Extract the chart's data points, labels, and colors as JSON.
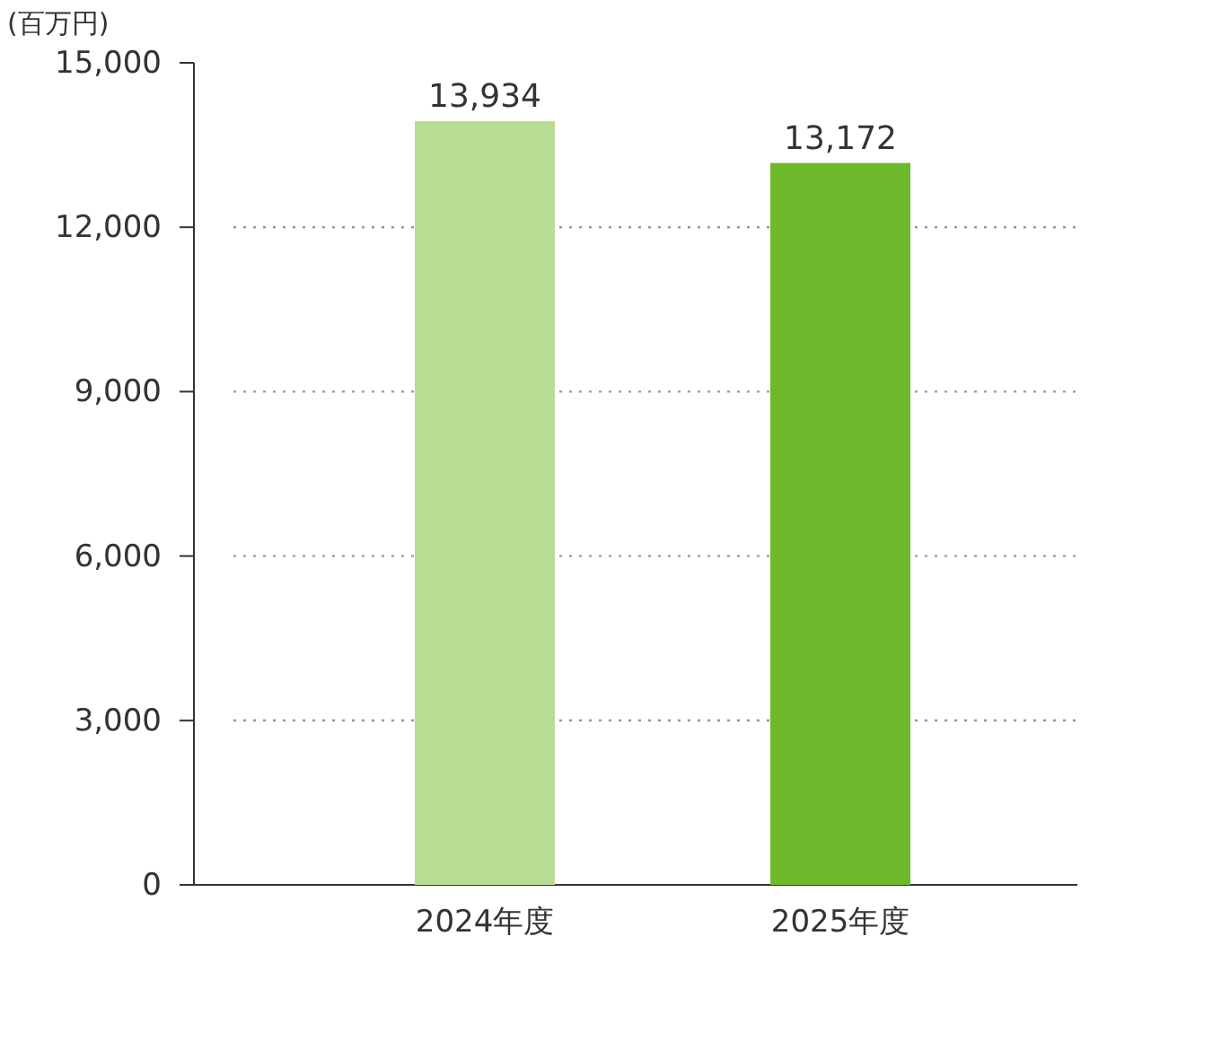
{
  "chart_data": {
    "type": "bar",
    "ylabel": "(百万円)",
    "categories": [
      "2024年度",
      "2025年度"
    ],
    "values": [
      13934,
      13172
    ],
    "colors": [
      "#b8dc94",
      "#6fb92c"
    ],
    "ylim": [
      0,
      15000
    ],
    "yticks": [
      {
        "value": 0,
        "label": "0"
      },
      {
        "value": 3000,
        "label": "3,000"
      },
      {
        "value": 6000,
        "label": "6,000"
      },
      {
        "value": 9000,
        "label": "9,000"
      },
      {
        "value": 12000,
        "label": "12,000"
      },
      {
        "value": 15000,
        "label": "15,000"
      }
    ],
    "value_labels": [
      "13,934",
      "13,172"
    ],
    "grid": "y"
  }
}
